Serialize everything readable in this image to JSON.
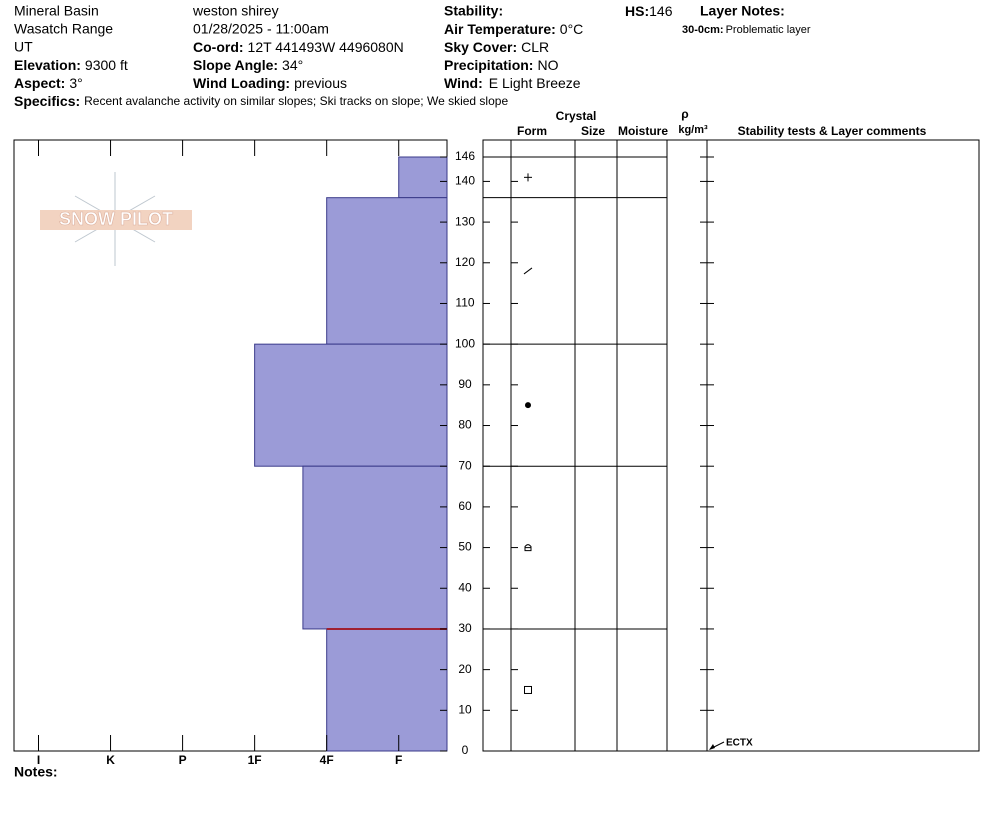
{
  "header": {
    "location": [
      "Mineral Basin",
      "Wasatch Range",
      "UT"
    ],
    "elevation": {
      "label": "Elevation:",
      "value": "9300 ft"
    },
    "aspect": {
      "label": "Aspect:",
      "value": "3°"
    },
    "specifics": {
      "label": "Specifics:",
      "value": "Recent avalanche activity on similar slopes; Ski tracks on slope; We skied slope"
    },
    "observer": "weston shirey",
    "datetime": "01/28/2025 - 11:00am",
    "coord": {
      "label": "Co-ord:",
      "value": "12T 441493W 4496080N"
    },
    "slope_angle": {
      "label": "Slope Angle:",
      "value": "34°"
    },
    "wind_loading": {
      "label": "Wind Loading:",
      "value": "previous"
    },
    "stability": {
      "label": "Stability:"
    },
    "air_temperature": {
      "label": "Air Temperature:",
      "value": "0°C"
    },
    "sky_cover": {
      "label": "Sky Cover:",
      "value": "CLR"
    },
    "precipitation": {
      "label": "Precipitation:",
      "value": "NO"
    },
    "wind": {
      "label": "Wind:",
      "value": "E Light Breeze"
    },
    "hs": {
      "label": "HS:",
      "value": "146"
    },
    "layer_notes": {
      "label": "Layer Notes:",
      "range": "30-0cm:",
      "note": "Problematic layer"
    }
  },
  "logo": "SNOW PILOT",
  "table_headers": {
    "crystal": "Crystal",
    "form": "Form",
    "size": "Size",
    "moisture": "Moisture",
    "rho": "ρ",
    "density_unit": "kg/m³",
    "comments": "Stability tests & Layer comments"
  },
  "stability_tests": [
    "ECTX"
  ],
  "notes": "Notes:",
  "chart_data": {
    "type": "hardness-profile",
    "ylim": [
      0,
      146
    ],
    "yticks": [
      0,
      10,
      20,
      30,
      40,
      50,
      60,
      70,
      80,
      90,
      100,
      110,
      120,
      130,
      140,
      146
    ],
    "xlim": [
      6.34,
      0.33
    ],
    "xticks": [
      {
        "value": 6,
        "label": "I"
      },
      {
        "value": 5,
        "label": "K"
      },
      {
        "value": 4,
        "label": "P"
      },
      {
        "value": 3,
        "label": "1F"
      },
      {
        "value": 2,
        "label": "4F"
      },
      {
        "value": 1,
        "label": "F"
      }
    ],
    "layers": {
      "top": [
        146,
        136,
        100,
        70,
        30
      ],
      "bottom": [
        136,
        100,
        70,
        30,
        0
      ],
      "hardness": [
        1,
        2,
        3,
        2.33,
        2
      ]
    },
    "color": "#9b9bd7",
    "highlight_depth": 30,
    "highlight_color": "#a02030"
  }
}
